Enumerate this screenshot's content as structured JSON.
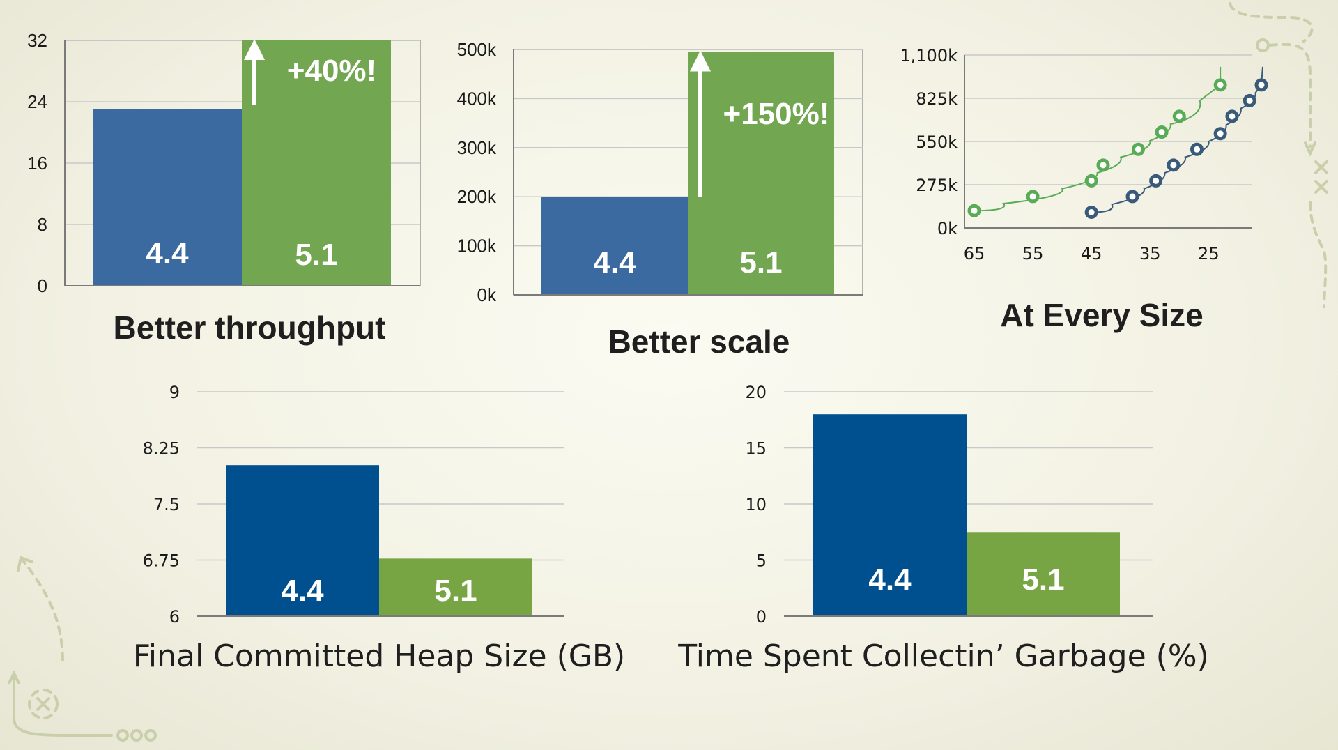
{
  "colors": {
    "blue": "#3a6aa0",
    "green": "#72a650",
    "navy": "#00508f",
    "green2": "#77a543",
    "scatter_green": "#5aab57",
    "scatter_blue": "#3a5a7a"
  },
  "chart_data": [
    {
      "id": "throughput",
      "type": "bar",
      "title": "Better throughput",
      "categories": [
        "4.4",
        "5.1"
      ],
      "values": [
        23,
        32
      ],
      "ylim": [
        0,
        32
      ],
      "yticks": [
        "0",
        "8",
        "16",
        "24",
        "32"
      ],
      "annotation": "+40%!",
      "grid": true
    },
    {
      "id": "scale",
      "type": "bar",
      "title": "Better scale",
      "categories": [
        "4.4",
        "5.1"
      ],
      "values": [
        200000,
        495000
      ],
      "ylim": [
        0,
        500000
      ],
      "yticks": [
        "0k",
        "100k",
        "200k",
        "300k",
        "400k",
        "500k"
      ],
      "annotation": "+150%!",
      "grid": true
    },
    {
      "id": "every-size",
      "type": "scatter",
      "title": "At Every Size",
      "xlim": [
        65,
        16
      ],
      "ylim": [
        0,
        1100000
      ],
      "xticks": [
        "65",
        "55",
        "45",
        "35",
        "25"
      ],
      "yticks": [
        "0k",
        "275k",
        "550k",
        "825k",
        "1,100k"
      ],
      "grid": true,
      "series": [
        {
          "color_key": "scatter_green",
          "x": [
            65,
            55,
            45,
            43,
            37,
            33,
            30,
            23
          ],
          "y": [
            110000,
            200000,
            300000,
            400000,
            500000,
            610000,
            710000,
            910000
          ]
        },
        {
          "color_key": "scatter_blue",
          "x": [
            45,
            38,
            34,
            31,
            27,
            23,
            21,
            18,
            16
          ],
          "y": [
            100000,
            200000,
            300000,
            400000,
            500000,
            600000,
            710000,
            810000,
            910000
          ]
        }
      ]
    },
    {
      "id": "heap",
      "type": "bar",
      "title": "Final Committed Heap Size (GB)",
      "categories": [
        "4.4",
        "5.1"
      ],
      "values": [
        8.02,
        6.77
      ],
      "ylim": [
        6,
        9
      ],
      "yticks": [
        "6",
        "6.75",
        "7.5",
        "8.25",
        "9"
      ],
      "grid": true
    },
    {
      "id": "gc-time",
      "type": "bar",
      "title": "Time Spent Collectin’ Garbage (%)",
      "categories": [
        "4.4",
        "5.1"
      ],
      "values": [
        18,
        7.5
      ],
      "ylim": [
        0,
        20
      ],
      "yticks": [
        "0",
        "5",
        "10",
        "15",
        "20"
      ],
      "grid": true
    }
  ]
}
